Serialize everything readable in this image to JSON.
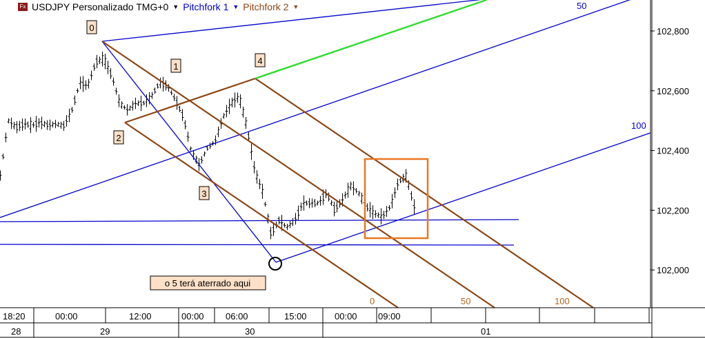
{
  "header": {
    "symbol": "USDJPY Personalizado TMG+0",
    "icon": "fx-icon",
    "studies": [
      {
        "label": "Pitchfork 1",
        "color": "#0000cc"
      },
      {
        "label": "Pitchfork 2",
        "color": "#8b4513"
      }
    ]
  },
  "chart_data": {
    "type": "bar",
    "title": "USDJPY Personalizado TMG+0",
    "ylim": [
      101850,
      102900
    ],
    "y_ticks": [
      "102,800",
      "102,600",
      "102,400",
      "102,200",
      "102,000"
    ],
    "y_tick_values": [
      102800,
      102600,
      102400,
      102200,
      102000
    ],
    "x_ticks_time": [
      "18:20",
      "00:00",
      "12:00",
      "00:00",
      "06:00",
      "15:00",
      "00:00",
      "09:00"
    ],
    "x_ticks_date": [
      "28",
      "29",
      "30",
      "01"
    ],
    "price_path": [
      102316,
      102500,
      102477,
      102489,
      102484,
      102494,
      102484,
      102489,
      102482,
      102535,
      102627,
      102616,
      102696,
      102708,
      102650,
      102558,
      102535,
      102558,
      102558,
      102581,
      102627,
      102616,
      102570,
      102512,
      102397,
      102351,
      102408,
      102431,
      102512,
      102558,
      102581,
      102477,
      102328,
      102259,
      102120,
      102166,
      102143,
      102166,
      102224,
      102224,
      102224,
      102259,
      102201,
      102235,
      102282,
      102259,
      102212,
      102189,
      102178,
      102212,
      102293,
      102316,
      102212
    ],
    "pivot_labels": [
      "0",
      "1",
      "2",
      "3",
      "4"
    ],
    "fork1_labels": [
      "50",
      "100"
    ],
    "fork2_labels": [
      "0",
      "50",
      "100"
    ],
    "annotation": "o 5 terá aterrado aqui",
    "colors": {
      "fork1": "#0000cc",
      "fork2": "#8b4513",
      "extension": "#33dd33",
      "highlight": "#e87722",
      "bars": "#000000"
    }
  }
}
